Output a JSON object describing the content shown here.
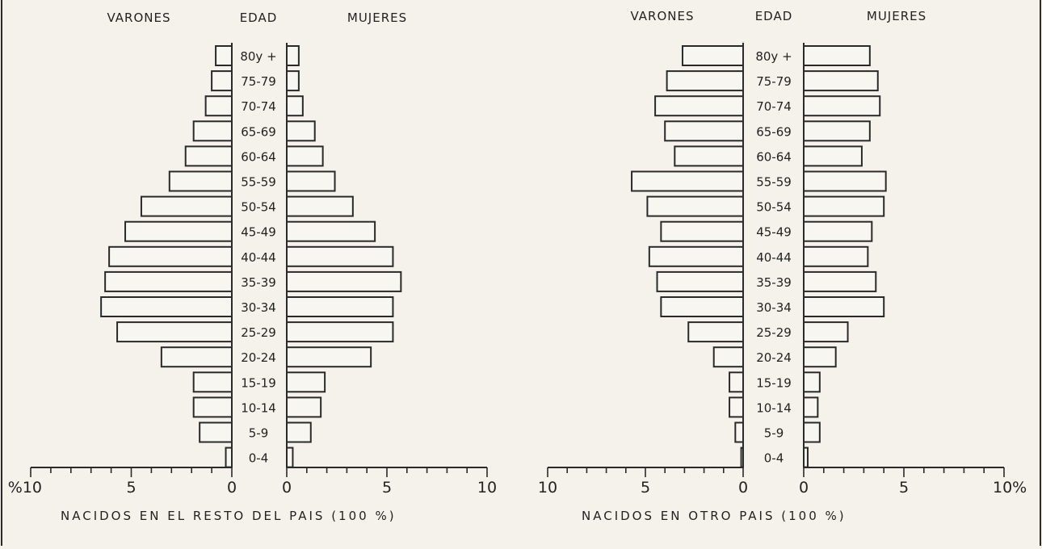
{
  "chart_data": [
    {
      "type": "bar",
      "orientation": "horizontal",
      "subtype": "population-pyramid",
      "left_label": "VARONES",
      "center_label": "EDAD",
      "right_label": "MUJERES",
      "caption": "NACIDOS EN EL RESTO DEL PAIS (100 %)",
      "categories": [
        "80y +",
        "75-79",
        "70-74",
        "65-69",
        "60-64",
        "55-59",
        "50-54",
        "45-49",
        "40-44",
        "35-39",
        "30-34",
        "25-29",
        "20-24",
        "15-19",
        "10-14",
        "5-9",
        "0-4"
      ],
      "series": [
        {
          "name": "VARONES",
          "values": [
            0.8,
            1.0,
            1.3,
            1.9,
            2.3,
            3.1,
            4.5,
            5.3,
            6.1,
            6.3,
            6.5,
            5.7,
            3.5,
            1.9,
            1.9,
            1.6,
            0.3
          ]
        },
        {
          "name": "MUJERES",
          "values": [
            0.6,
            0.6,
            0.8,
            1.4,
            1.8,
            2.4,
            3.3,
            4.4,
            5.3,
            5.7,
            5.3,
            5.3,
            4.2,
            1.9,
            1.7,
            1.2,
            0.3
          ]
        }
      ],
      "xlim": [
        0,
        10
      ],
      "x_tick_labels_left": [
        "%10",
        "5",
        "0"
      ],
      "x_tick_labels_right": [
        "0",
        "5",
        "10"
      ]
    },
    {
      "type": "bar",
      "orientation": "horizontal",
      "subtype": "population-pyramid",
      "left_label": "VARONES",
      "center_label": "EDAD",
      "right_label": "MUJERES",
      "caption": "NACIDOS EN OTRO PAIS (100 %)",
      "categories": [
        "80y +",
        "75-79",
        "70-74",
        "65-69",
        "60-64",
        "55-59",
        "50-54",
        "45-49",
        "40-44",
        "35-39",
        "30-34",
        "25-29",
        "20-24",
        "15-19",
        "10-14",
        "5-9",
        "0-4"
      ],
      "series": [
        {
          "name": "VARONES",
          "values": [
            3.1,
            3.9,
            4.5,
            4.0,
            3.5,
            5.7,
            4.9,
            4.2,
            4.8,
            4.4,
            4.2,
            2.8,
            1.5,
            0.7,
            0.7,
            0.4,
            0.1
          ]
        },
        {
          "name": "MUJERES",
          "values": [
            3.3,
            3.7,
            3.8,
            3.3,
            2.9,
            4.1,
            4.0,
            3.4,
            3.2,
            3.6,
            4.0,
            2.2,
            1.6,
            0.8,
            0.7,
            0.8,
            0.2
          ]
        }
      ],
      "xlim": [
        0,
        10
      ],
      "x_tick_labels_left": [
        "10",
        "5",
        "0"
      ],
      "x_tick_labels_right": [
        "0",
        "5",
        "10%"
      ]
    }
  ]
}
